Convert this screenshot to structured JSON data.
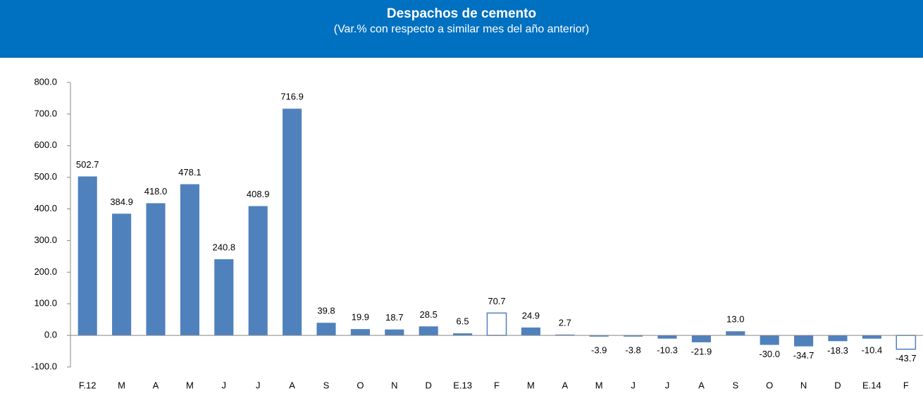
{
  "chart_data": {
    "type": "bar",
    "title": "Despachos de cemento",
    "subtitle": "(Var.% con respecto a similar mes del año anterior)",
    "categories": [
      "F.12",
      "M",
      "A",
      "M",
      "J",
      "J",
      "A",
      "S",
      "O",
      "N",
      "D",
      "E.13",
      "F",
      "M",
      "A",
      "M",
      "J",
      "J",
      "A",
      "S",
      "O",
      "N",
      "D",
      "E.14",
      "F"
    ],
    "values": [
      502.7,
      384.9,
      418.0,
      478.1,
      240.8,
      408.9,
      716.9,
      39.8,
      19.9,
      18.7,
      28.5,
      6.5,
      70.7,
      24.9,
      2.7,
      -3.9,
      -3.8,
      -10.3,
      -21.9,
      13.0,
      -30.0,
      -34.7,
      -18.3,
      -10.4,
      -43.7
    ],
    "value_labels": [
      "502.7",
      "384.9",
      "418.0",
      "478.1",
      "240.8",
      "408.9",
      "716.9",
      "39.8",
      "19.9",
      "18.7",
      "28.5",
      "6.5",
      "70.7",
      "24.9",
      "2.7",
      "-3.9",
      "-3.8",
      "-10.3",
      "-21.9",
      "13.0",
      "-30.0",
      "-34.7",
      "-18.3",
      "-10.4",
      "-43.7"
    ],
    "color": "#4f81bd",
    "outlined": [
      12,
      24
    ],
    "ylim": [
      -100,
      800
    ],
    "yticks": [
      {
        "value": -100,
        "label": "-100.0"
      },
      {
        "value": 0,
        "label": "0.0"
      },
      {
        "value": 100,
        "label": "100.0"
      },
      {
        "value": 200,
        "label": "200.0"
      },
      {
        "value": 300,
        "label": "300.0"
      },
      {
        "value": 400,
        "label": "400.0"
      },
      {
        "value": 500,
        "label": "500.0"
      },
      {
        "value": 600,
        "label": "600.0"
      },
      {
        "value": 700,
        "label": "700.0"
      },
      {
        "value": 800,
        "label": "800.0"
      }
    ],
    "grid": false
  }
}
